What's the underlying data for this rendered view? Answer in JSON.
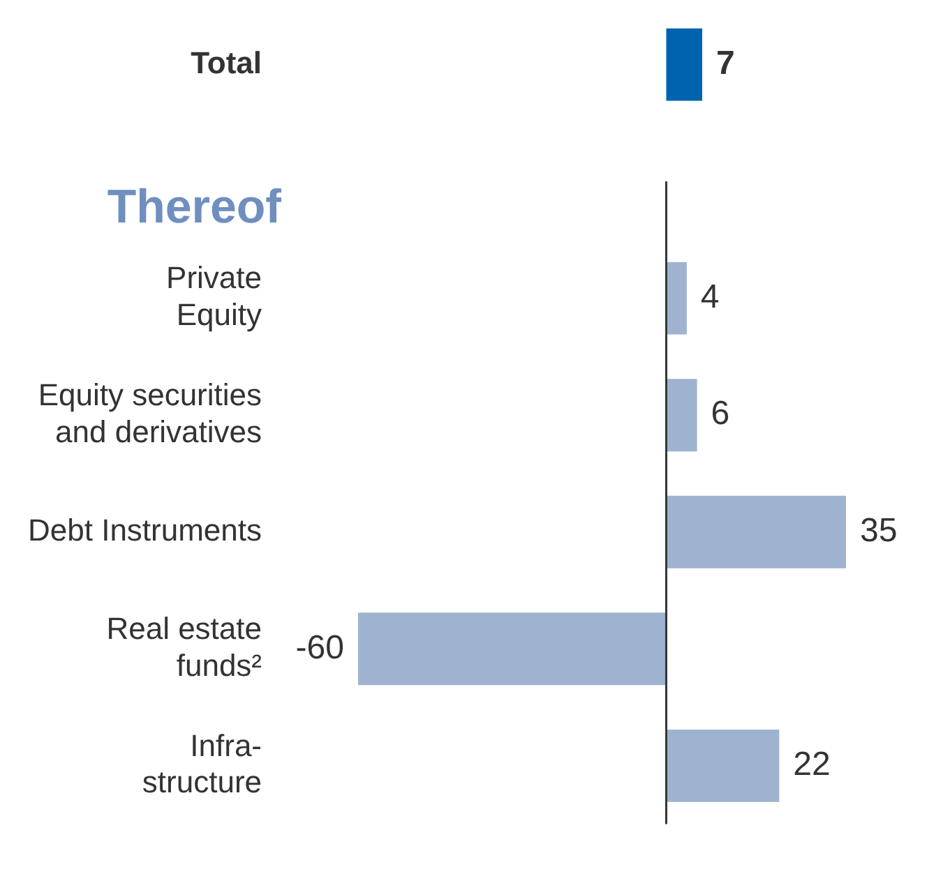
{
  "chart_data": {
    "type": "bar",
    "orientation": "horizontal",
    "categories": [
      "Total",
      null,
      "Private\nEquity",
      "Equity securities\nand derivatives",
      "Debt Instruments",
      "Real estate\nfunds²",
      "Infra-\nstructure"
    ],
    "values": [
      7,
      null,
      4,
      6,
      35,
      -60,
      22
    ],
    "colors": [
      "#0063b0",
      null,
      "#9fb3d1",
      "#9fb3d1",
      "#9fb3d1",
      "#9fb3d1",
      "#9fb3d1"
    ],
    "data_labels": true,
    "annotations": [
      "Thereof"
    ],
    "ref_lines": [
      {
        "axis": "x",
        "value": 0,
        "color": "#333333"
      }
    ]
  }
}
